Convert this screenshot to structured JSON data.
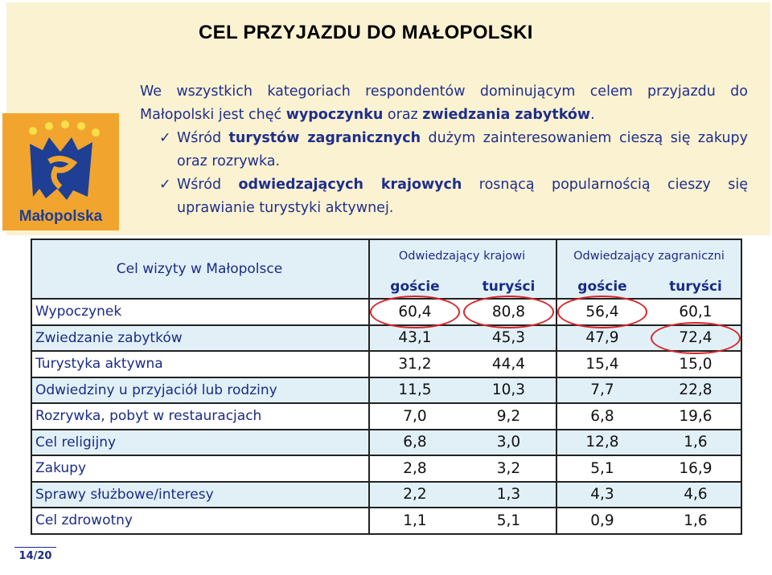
{
  "header": {
    "title": "CEL PRZYJAZDU DO MAŁOPOLSKI"
  },
  "logo": {
    "text": "Małopolska",
    "colors": {
      "background": "#f2a52e",
      "figure": "#1e3f94"
    }
  },
  "intro": {
    "p1_a": "We wszystkich kategoriach respondentów dominującym celem przyjazdu do Małopolski jest chęć ",
    "p1_b1": "wypoczynku",
    "p1_c": " oraz ",
    "p1_b2": "zwiedzania zabytków",
    "p1_d": ".",
    "bullet1_a": "Wśród ",
    "bullet1_b": "turystów zagranicznych",
    "bullet1_c": " dużym zainteresowaniem cieszą się zakupy oraz rozrywka.",
    "bullet2_a": "Wśród ",
    "bullet2_b": "odwiedzających krajowych",
    "bullet2_c": " rosnącą popularnością cieszy się uprawianie turystyki aktywnej.",
    "check_icon": "✓"
  },
  "table": {
    "corner_label": "Cel wizyty w Małopolsce",
    "group1": "Odwiedzający krajowi",
    "group2": "Odwiedzający zagraniczni",
    "sub": [
      "goście",
      "turyści",
      "goście",
      "turyści"
    ],
    "rows": [
      {
        "label": "Wypoczynek",
        "values": [
          "60,4",
          "80,8",
          "56,4",
          "60,1"
        ]
      },
      {
        "label": "Zwiedzanie zabytków",
        "values": [
          "43,1",
          "45,3",
          "47,9",
          "72,4"
        ]
      },
      {
        "label": "Turystyka aktywna",
        "values": [
          "31,2",
          "44,4",
          "15,4",
          "15,0"
        ]
      },
      {
        "label": "Odwiedziny u przyjaciół lub rodziny",
        "values": [
          "11,5",
          "10,3",
          "7,7",
          "22,8"
        ]
      },
      {
        "label": "Rozrywka, pobyt w restauracjach",
        "values": [
          "7,0",
          "9,2",
          "6,8",
          "19,6"
        ]
      },
      {
        "label": "Cel religijny",
        "values": [
          "6,8",
          "3,0",
          "12,8",
          "1,6"
        ]
      },
      {
        "label": "Zakupy",
        "values": [
          "2,8",
          "3,2",
          "5,1",
          "16,9"
        ]
      },
      {
        "label": "Sprawy służbowe/interesy",
        "values": [
          "2,2",
          "1,3",
          "4,3",
          "4,6"
        ]
      },
      {
        "label": "Cel zdrowotny",
        "values": [
          "1,1",
          "5,1",
          "0,9",
          "1,6"
        ]
      }
    ],
    "highlight_color": "#d9242a"
  },
  "footer": {
    "page": "14/20"
  }
}
